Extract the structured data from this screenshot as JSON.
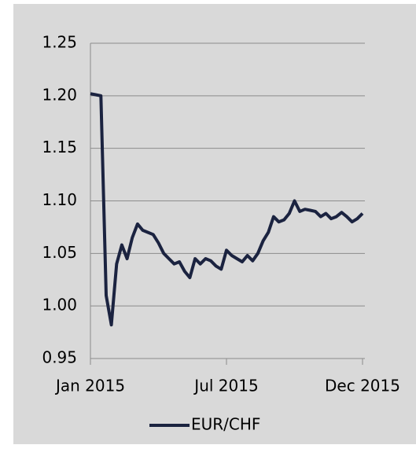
{
  "chart_data": {
    "type": "line",
    "categories": [
      "Jan 2015",
      null,
      null,
      null,
      null,
      null,
      null,
      null,
      null,
      null,
      null,
      null,
      null,
      null,
      null,
      null,
      null,
      null,
      null,
      null,
      null,
      null,
      null,
      null,
      null,
      null,
      "Jul 2015",
      null,
      null,
      null,
      null,
      null,
      null,
      null,
      null,
      null,
      null,
      null,
      null,
      null,
      null,
      null,
      null,
      null,
      null,
      null,
      null,
      null,
      null,
      null,
      null,
      null,
      "Dec 2015"
    ],
    "series": [
      {
        "name": "EUR/CHF",
        "color": "#1b2340",
        "values": [
          1.202,
          1.201,
          1.2,
          1.01,
          0.982,
          1.04,
          1.058,
          1.045,
          1.065,
          1.078,
          1.072,
          1.07,
          1.068,
          1.06,
          1.05,
          1.045,
          1.04,
          1.042,
          1.033,
          1.027,
          1.045,
          1.04,
          1.045,
          1.043,
          1.038,
          1.035,
          1.053,
          1.048,
          1.045,
          1.042,
          1.048,
          1.043,
          1.05,
          1.062,
          1.07,
          1.085,
          1.08,
          1.082,
          1.088,
          1.1,
          1.09,
          1.092,
          1.091,
          1.09,
          1.085,
          1.088,
          1.083,
          1.085,
          1.089,
          1.085,
          1.08,
          1.083,
          1.088
        ]
      }
    ],
    "ylim": [
      0.95,
      1.25
    ],
    "yticks": [
      {
        "value": 0.95,
        "label": "0.95"
      },
      {
        "value": 1,
        "label": "1.00"
      },
      {
        "value": 1.05,
        "label": "1.05"
      },
      {
        "value": 1.1,
        "label": "1.10"
      },
      {
        "value": 1.15,
        "label": "1.15"
      },
      {
        "value": 1.2,
        "label": "1.20"
      },
      {
        "value": 1.25,
        "label": "1.25"
      }
    ],
    "grid": true,
    "legend": "bottom"
  }
}
